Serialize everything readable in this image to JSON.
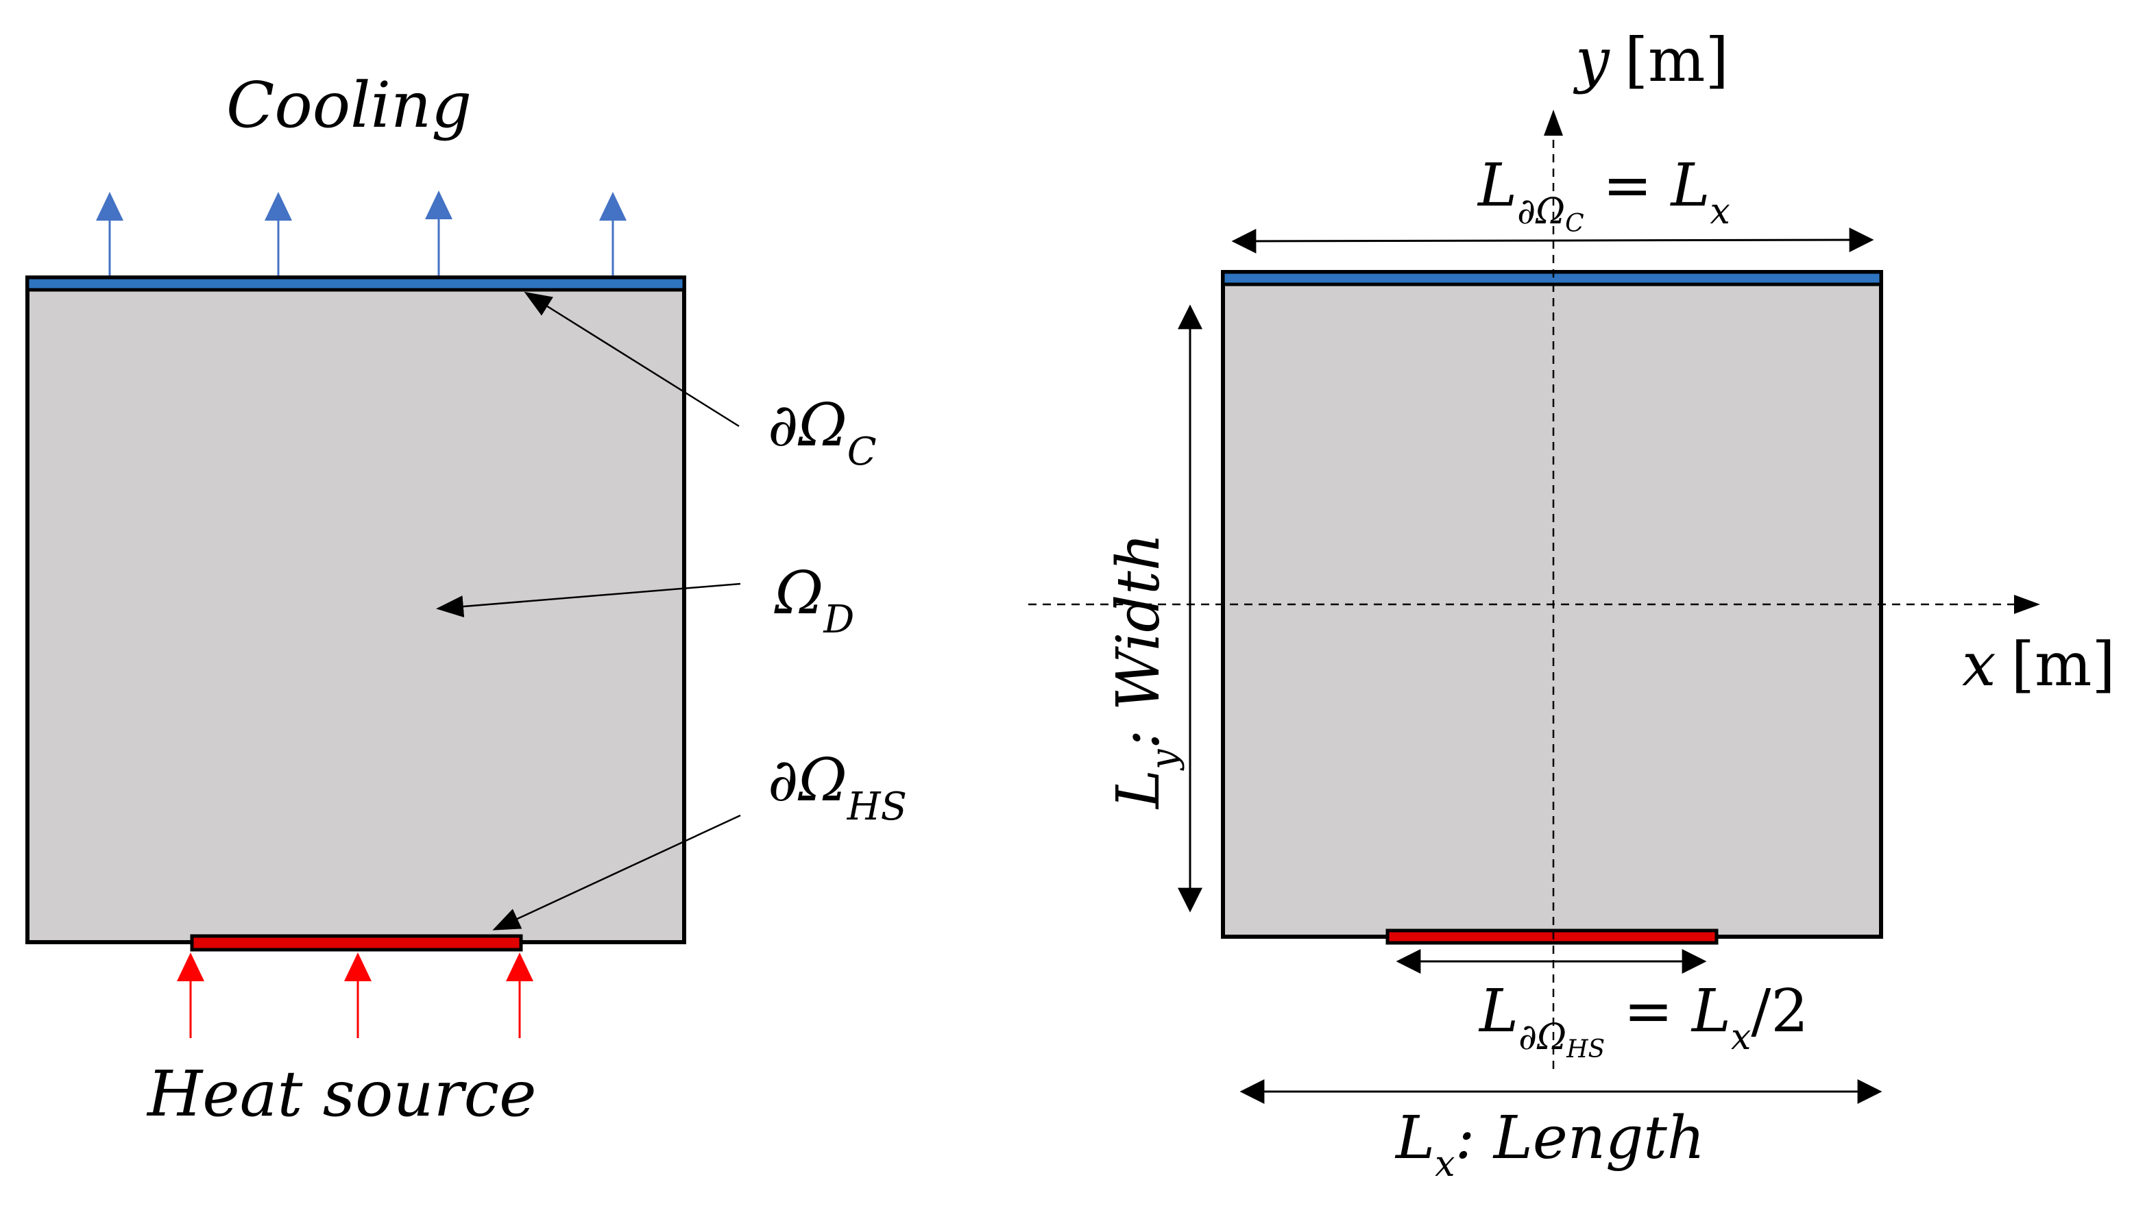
{
  "colors": {
    "domain_fill": "#d0cecf",
    "outline": "#000000",
    "cooling": "#2e74c0",
    "cooling_arrow": "#4472c4",
    "heat": "#ff0000",
    "heat_bar": "#e00000",
    "background": "#ffffff"
  },
  "left": {
    "cooling": "Cooling",
    "heat_source": "Heat source",
    "boundary_c": {
      "sym": "∂Ω",
      "sub": "C"
    },
    "domain": {
      "sym": "Ω",
      "sub": "D"
    },
    "boundary_hs": {
      "sym": "∂Ω",
      "sub": "HS"
    }
  },
  "right": {
    "y_axis": {
      "var": "y",
      "unit": "[m]"
    },
    "x_axis": {
      "var": "x",
      "unit": "[m]"
    },
    "top_dim": {
      "L": "L",
      "sub": "∂Ω",
      "subsub": "C",
      "rest": " = ",
      "L2": "L",
      "sub2": "x"
    },
    "bottom_dim": {
      "L": "L",
      "sub": "∂Ω",
      "subsub": "HS",
      "rest": " = ",
      "L2": "L",
      "sub2": "x",
      "tail": "/2"
    },
    "length": {
      "L": "L",
      "sub": "x",
      "rest": ": Length"
    },
    "width": {
      "L": "L",
      "sub": "y",
      "rest": ": Width"
    }
  }
}
